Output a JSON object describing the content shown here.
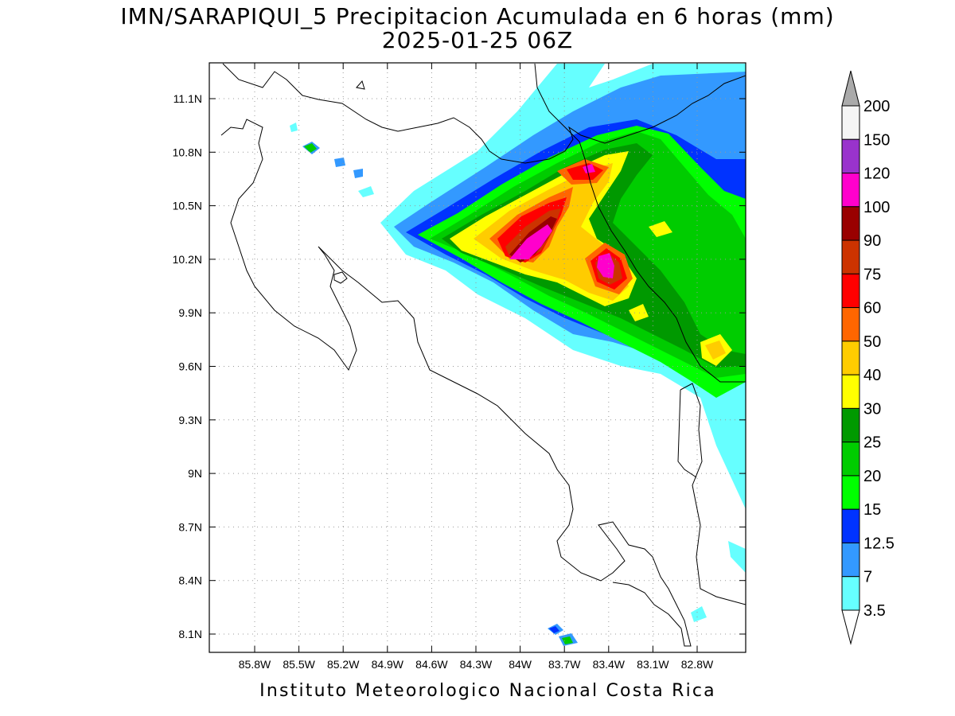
{
  "header": {
    "title": "IMN/SARAPIQUI_5 Precipitacion Acumulada en 6 horas (mm)",
    "subtitle": "2025-01-25 06Z"
  },
  "footer": {
    "credit": "Instituto Meteorologico Nacional Costa Rica"
  },
  "map": {
    "lat_labels": [
      "11.1N",
      "10.8N",
      "10.5N",
      "10.2N",
      "9.9N",
      "9.6N",
      "9.3N",
      "9N",
      "8.7N",
      "8.4N",
      "8.1N"
    ],
    "lat_values": [
      11.1,
      10.8,
      10.5,
      10.2,
      9.9,
      9.6,
      9.3,
      9.0,
      8.7,
      8.4,
      8.1
    ],
    "lon_labels": [
      "85.8W",
      "85.5W",
      "85.2W",
      "84.9W",
      "84.6W",
      "84.3W",
      "84W",
      "83.7W",
      "83.4W",
      "83.1W",
      "82.8W"
    ],
    "lon_values": [
      -85.8,
      -85.5,
      -85.2,
      -84.9,
      -84.6,
      -84.3,
      -84.0,
      -83.7,
      -83.4,
      -83.1,
      -82.8
    ],
    "grid_lines": "dotted"
  },
  "colorbar": {
    "labels": [
      "3.5",
      "7",
      "12.5",
      "15",
      "20",
      "25",
      "30",
      "40",
      "50",
      "60",
      "75",
      "90",
      "100",
      "120",
      "150",
      "200"
    ],
    "colors": [
      "#66ffff",
      "#3399ff",
      "#0033ff",
      "#00ff00",
      "#00cc00",
      "#009900",
      "#ffff00",
      "#ffcc00",
      "#ff6600",
      "#ff0000",
      "#cc3300",
      "#990000",
      "#ff00cc",
      "#9933cc",
      "#f5f5f5",
      "#aaaaaa"
    ]
  }
}
